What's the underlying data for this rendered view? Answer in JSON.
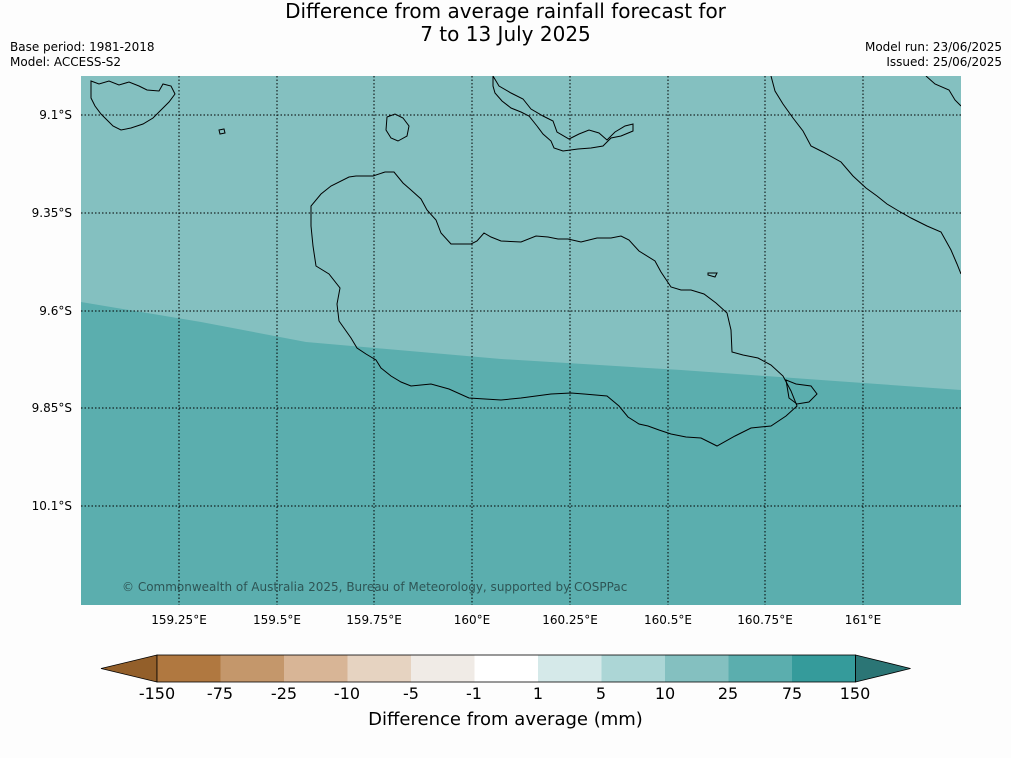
{
  "title": {
    "line1": "Difference from average rainfall forecast for",
    "line2": "7 to 13 July 2025"
  },
  "meta_left": {
    "base_period": "Base period: 1981-2018",
    "model": "Model: ACCESS-S2"
  },
  "meta_right": {
    "model_run": "Model run: 23/06/2025",
    "issued": "Issued: 25/06/2025"
  },
  "map": {
    "lat_labels": [
      "9.1°S",
      "9.35°S",
      "9.6°S",
      "9.85°S",
      "10.1°S"
    ],
    "lon_labels": [
      "159.25°E",
      "159.5°E",
      "159.75°E",
      "160°E",
      "160.25°E",
      "160.5°E",
      "160.75°E",
      "161°E"
    ],
    "copyright": "© Commonwealth of Australia 2025, Bureau of Meteorology, supported by COSPPac",
    "colors": {
      "upper_region": "#84c0c0",
      "lower_region": "#5baeae",
      "coastline": "#000000",
      "gridline": "#000000"
    }
  },
  "colorbar": {
    "label": "Difference from average (mm)",
    "ticks": [
      "-150",
      "-75",
      "-25",
      "-10",
      "-5",
      "-1",
      "1",
      "5",
      "10",
      "25",
      "75",
      "150"
    ],
    "colors": [
      "#935f2a",
      "#b07840",
      "#c4976b",
      "#d8b596",
      "#e6d3c1",
      "#f0ebe6",
      "#ffffff",
      "#d5e9e9",
      "#acd6d6",
      "#84c0c0",
      "#5baeae",
      "#359b9b",
      "#2b7575"
    ]
  }
}
